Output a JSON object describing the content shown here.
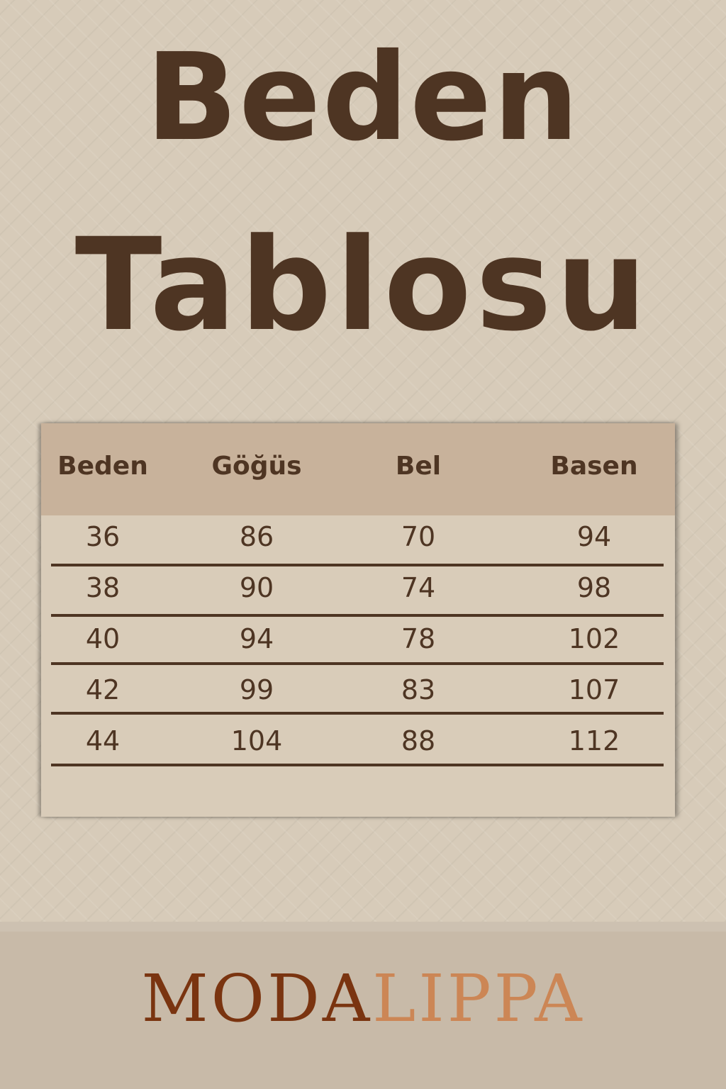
{
  "title": {
    "line1": "Beden",
    "line2": "Tablosu"
  },
  "table": {
    "headers": [
      "Beden",
      "Göğüs",
      "Bel",
      "Basen"
    ],
    "rows": [
      [
        "36",
        "86",
        "70",
        "94"
      ],
      [
        "38",
        "90",
        "74",
        "98"
      ],
      [
        "40",
        "94",
        "78",
        "102"
      ],
      [
        "42",
        "99",
        "83",
        "107"
      ],
      [
        "44",
        "104",
        "88",
        "112"
      ]
    ]
  },
  "logo": {
    "part1": "MODA",
    "part2": "LIPPA",
    "color1": "#7a3410",
    "color2": "#cc8655"
  },
  "colors": {
    "text": "#4e3523",
    "header_bg": "#c8b29b",
    "background": "#d7cbb9"
  }
}
